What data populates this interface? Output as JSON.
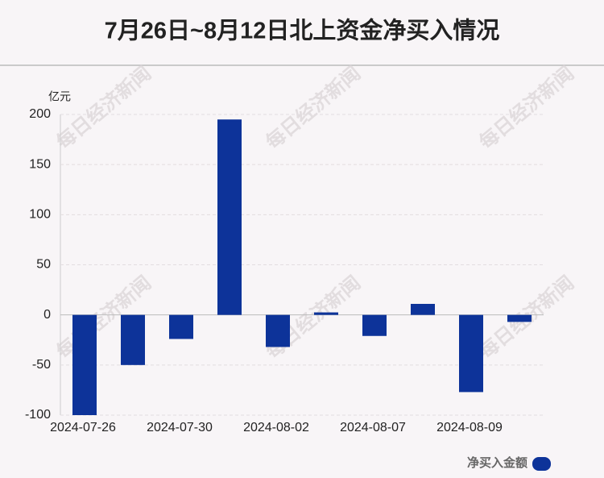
{
  "chart_data": {
    "type": "bar",
    "title": "7月26日~8月12日北上资金净买入情况",
    "unit_label": "亿元",
    "categories": [
      "2024-07-26",
      null,
      "2024-07-30",
      null,
      "2024-08-02",
      null,
      "2024-08-07",
      null,
      "2024-08-09",
      null
    ],
    "series": [
      {
        "name": "净买入金额",
        "color": "#0d3399",
        "values": [
          -100,
          -50,
          -24,
          195,
          -32,
          2.5,
          -21,
          11,
          -77,
          -7
        ]
      }
    ],
    "ylim": [
      -100,
      200
    ],
    "yticks": [
      -100,
      -50,
      0,
      50,
      100,
      150,
      200
    ],
    "grid": true,
    "legend": "bottom-right",
    "watermark": "每日经济新闻"
  }
}
